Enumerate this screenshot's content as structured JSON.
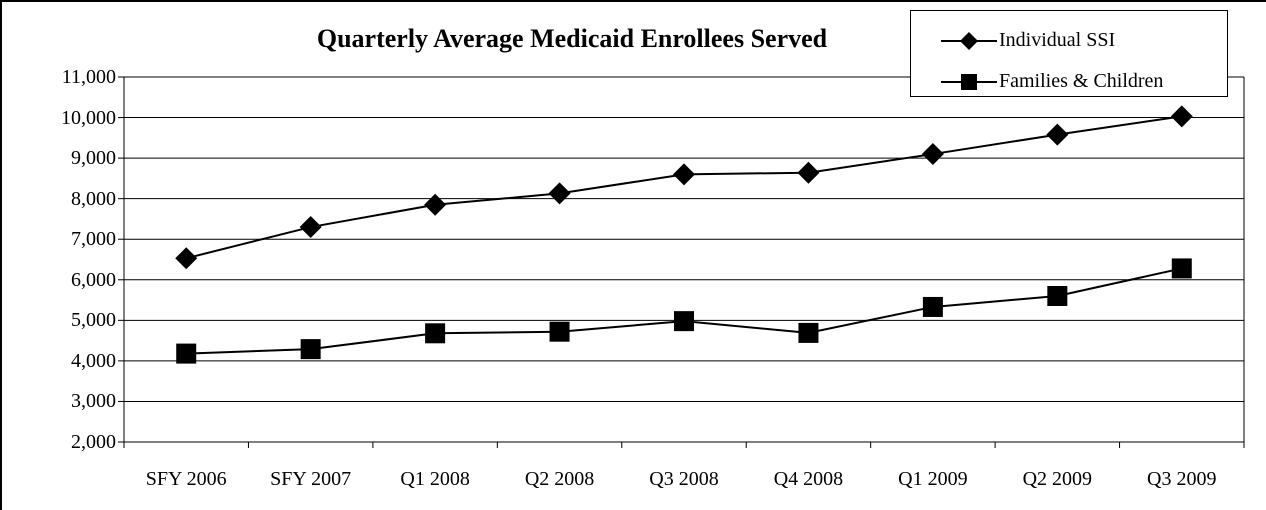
{
  "chart_data": {
    "type": "line",
    "title": "Quarterly Average Medicaid Enrollees Served",
    "xlabel": "",
    "ylabel": "",
    "categories": [
      "SFY 2006",
      "SFY 2007",
      "Q1 2008",
      "Q2 2008",
      "Q3 2008",
      "Q4 2008",
      "Q1 2009",
      "Q2 2009",
      "Q3 2009"
    ],
    "ylim": [
      2000,
      11000
    ],
    "yticks": [
      "2,000",
      "3,000",
      "4,000",
      "5,000",
      "6,000",
      "7,000",
      "8,000",
      "9,000",
      "10,000",
      "11,000"
    ],
    "grid": true,
    "legend_position": "top-right",
    "series": [
      {
        "name": "Individual SSI",
        "marker": "diamond",
        "color": "#000000",
        "values": [
          6530,
          7300,
          7850,
          8130,
          8600,
          8640,
          9100,
          9580,
          10030
        ]
      },
      {
        "name": "Families & Children",
        "marker": "square",
        "color": "#000000",
        "values": [
          4180,
          4290,
          4680,
          4720,
          4980,
          4690,
          5330,
          5600,
          6280
        ]
      }
    ]
  }
}
